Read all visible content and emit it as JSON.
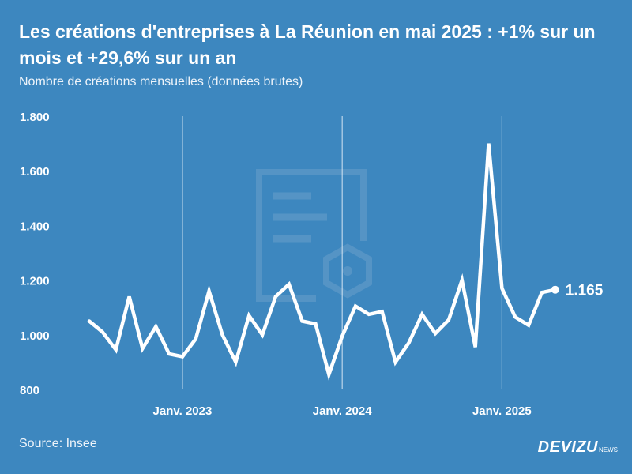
{
  "header": {
    "title": "Les créations d'entreprises à La Réunion en mai 2025 : +1% sur un mois et +29,6% sur un an",
    "subtitle": "Nombre de créations mensuelles (données brutes)"
  },
  "footer": {
    "source": "Source: Insee",
    "brand": "DEVIZU",
    "brand_sub": "NEWS"
  },
  "colors": {
    "background": "#3d87bf",
    "line": "#ffffff",
    "watermark": "#6a9fcb"
  },
  "icons": {
    "watermark": "document-badge-icon"
  },
  "chart_data": {
    "type": "line",
    "title": "Les créations d'entreprises à La Réunion en mai 2025 : +1% sur un mois et +29,6% sur un an",
    "subtitle": "Nombre de créations mensuelles (données brutes)",
    "xlabel": "",
    "ylabel": "",
    "x_start": "2022-06",
    "x_ticks": [
      {
        "label": "Janv. 2023",
        "index": 7
      },
      {
        "label": "Janv. 2024",
        "index": 19
      },
      {
        "label": "Janv. 2025",
        "index": 31
      }
    ],
    "y_ticks": [
      {
        "value": 800,
        "label": "800"
      },
      {
        "value": 1000,
        "label": "1.000"
      },
      {
        "value": 1200,
        "label": "1.200"
      },
      {
        "value": 1400,
        "label": "1.400"
      },
      {
        "value": 1600,
        "label": "1.600"
      },
      {
        "value": 1800,
        "label": "1.800"
      }
    ],
    "ylim": [
      800,
      1800
    ],
    "grid": "vertical-at-january",
    "series": [
      {
        "values": [
          1050,
          1010,
          945,
          1140,
          950,
          1030,
          930,
          920,
          985,
          1160,
          1000,
          900,
          1070,
          1000,
          1140,
          1185,
          1050,
          1040,
          855,
          995,
          1105,
          1075,
          1085,
          900,
          970,
          1075,
          1005,
          1055,
          1200,
          955,
          1700,
          1170,
          1065,
          1035,
          1155,
          1165
        ]
      }
    ],
    "end_label": "1.165"
  }
}
